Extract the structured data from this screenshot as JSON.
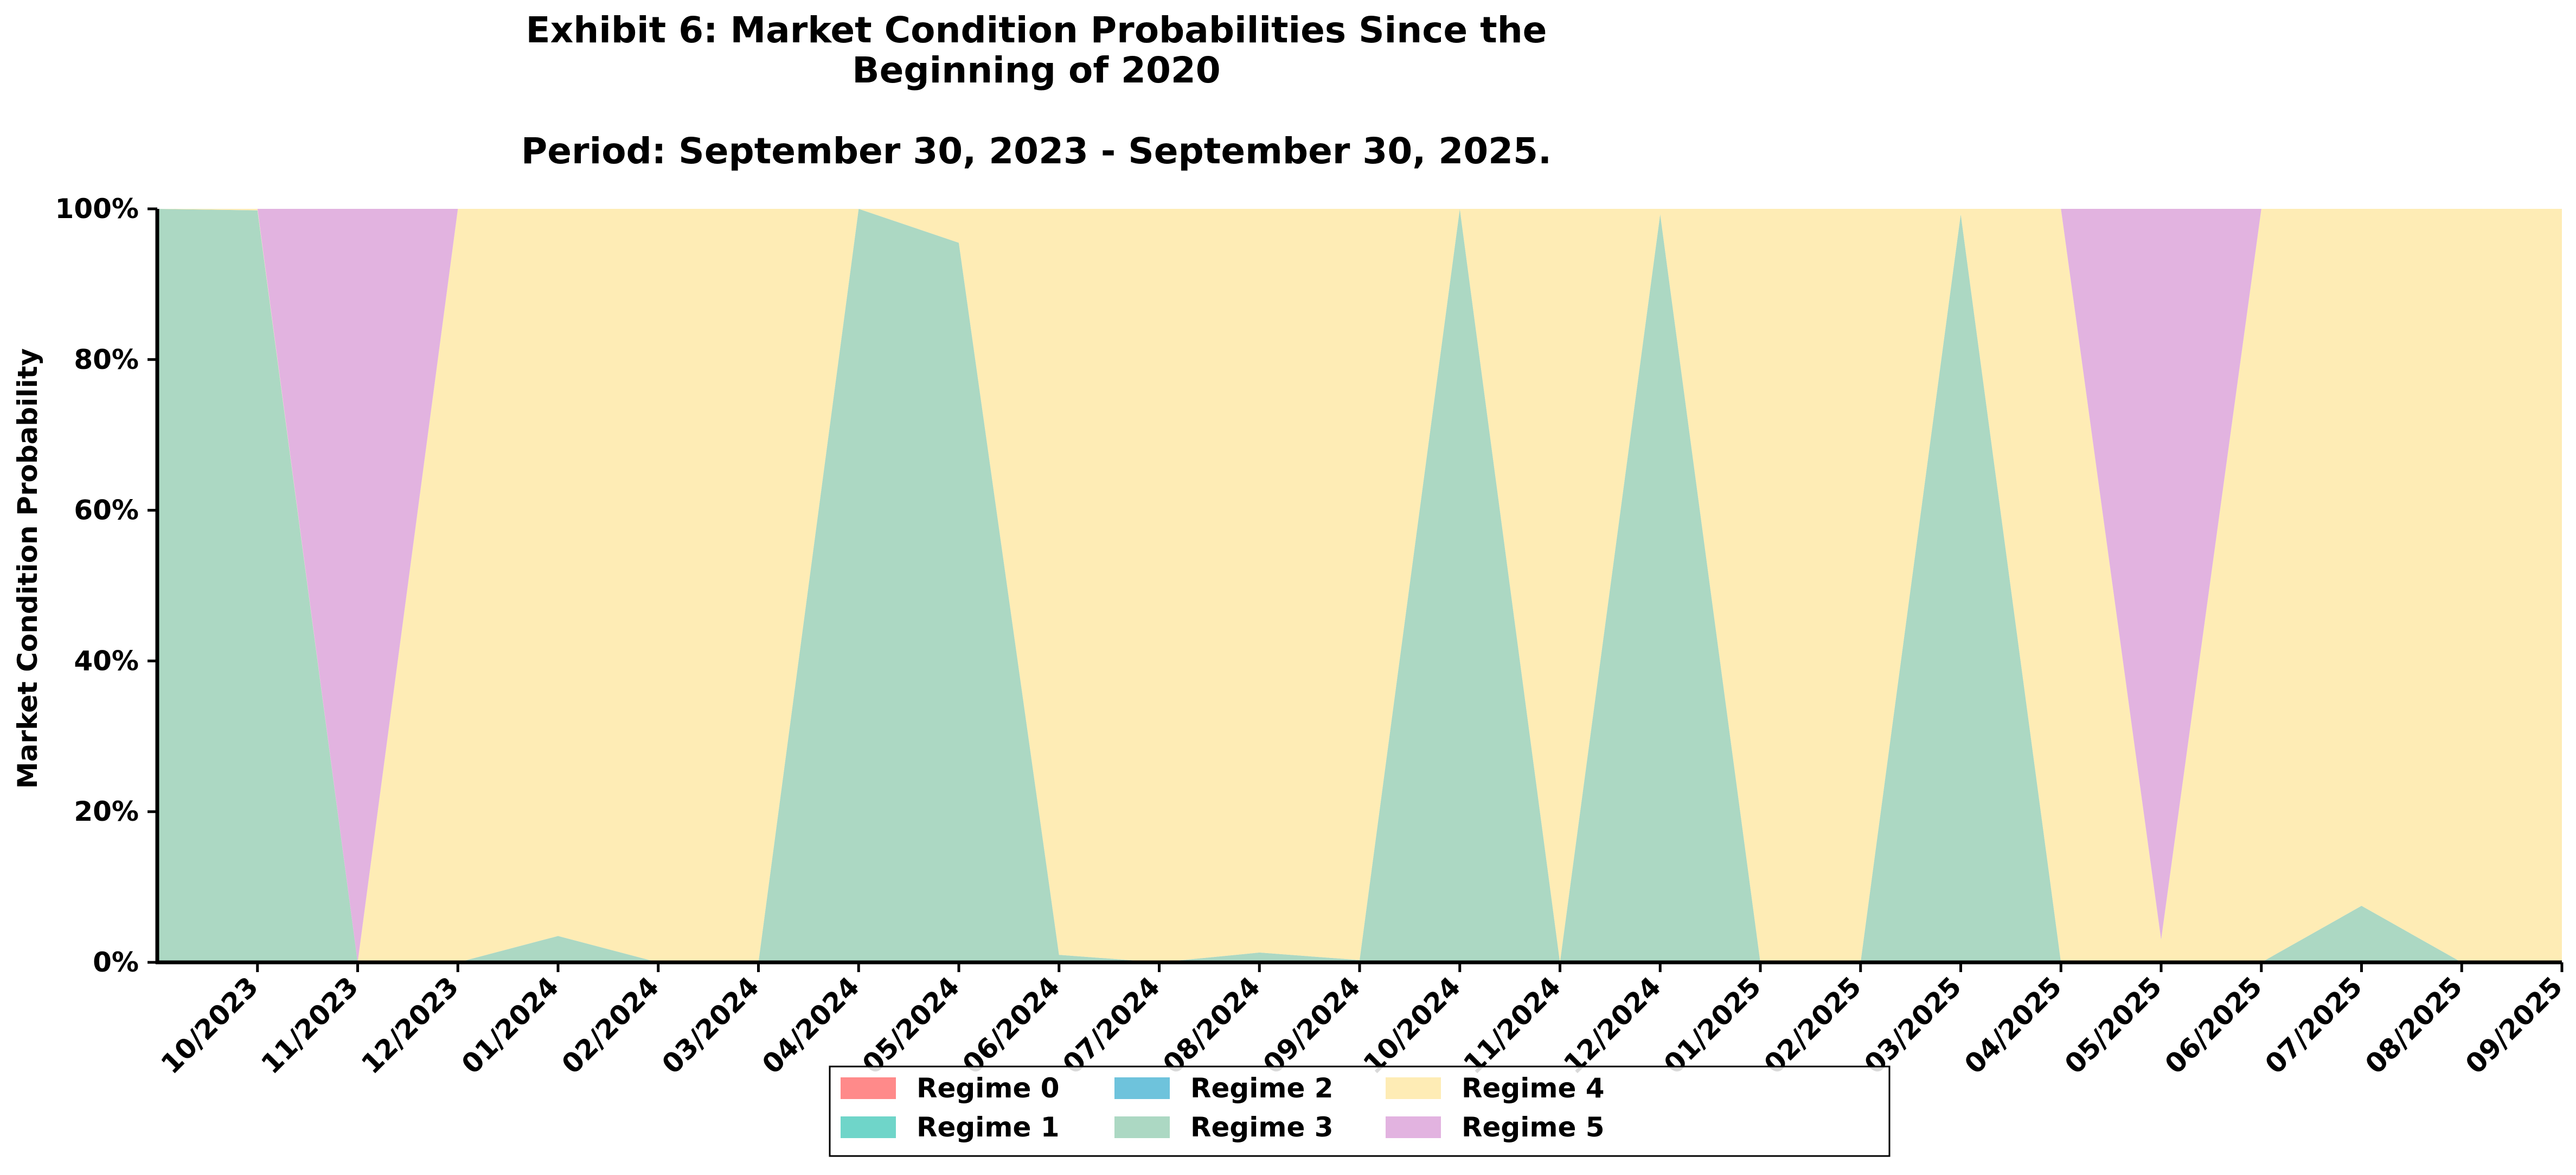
{
  "chart_data": {
    "type": "area",
    "stacked": true,
    "normalized": true,
    "title": "Exhibit 6: Market Condition Probabilities Since the\nBeginning of 2020",
    "subtitle": "Period: September 30, 2023 - September 30, 2025.",
    "xlabel": "",
    "ylabel": "Market Condition Probability",
    "ylim": [
      0,
      1
    ],
    "yticks": [
      0,
      0.2,
      0.4,
      0.6,
      0.8,
      1.0
    ],
    "ytick_labels": [
      "0%",
      "20%",
      "40%",
      "60%",
      "80%",
      "100%"
    ],
    "x": [
      "2023-09-30",
      "2023-10-31",
      "2023-11-30",
      "2023-12-31",
      "2024-01-31",
      "2024-02-29",
      "2024-03-31",
      "2024-04-30",
      "2024-05-31",
      "2024-06-30",
      "2024-07-31",
      "2024-08-31",
      "2024-09-30",
      "2024-10-31",
      "2024-11-30",
      "2024-12-31",
      "2025-01-31",
      "2025-02-28",
      "2025-03-31",
      "2025-04-30",
      "2025-05-31",
      "2025-06-30",
      "2025-07-31",
      "2025-08-31",
      "2025-09-30"
    ],
    "xtick_labels": [
      "10/2023",
      "11/2023",
      "12/2023",
      "01/2024",
      "02/2024",
      "03/2024",
      "04/2024",
      "05/2024",
      "06/2024",
      "07/2024",
      "08/2024",
      "09/2024",
      "10/2024",
      "11/2024",
      "12/2024",
      "01/2025",
      "02/2025",
      "03/2025",
      "04/2025",
      "05/2025",
      "06/2025",
      "07/2025",
      "08/2025",
      "09/2025"
    ],
    "series": [
      {
        "name": "Regime 0",
        "color": "#ff8a8a",
        "values": [
          0,
          0,
          0,
          0,
          0,
          0,
          0,
          0,
          0,
          0,
          0,
          0,
          0,
          0,
          0,
          0,
          0,
          0,
          0,
          0,
          0,
          0,
          0,
          0,
          0
        ]
      },
      {
        "name": "Regime 1",
        "color": "#6fd5c9",
        "values": [
          0,
          0,
          0,
          0,
          0,
          0,
          0,
          0,
          0,
          0,
          0,
          0,
          0,
          0,
          0,
          0,
          0,
          0,
          0,
          0,
          0,
          0,
          0,
          0,
          0
        ]
      },
      {
        "name": "Regime 2",
        "color": "#6ec3dc",
        "values": [
          0,
          0,
          0,
          0,
          0,
          0,
          0,
          0,
          0,
          0,
          0,
          0,
          0,
          0,
          0,
          0,
          0,
          0,
          0,
          0,
          0,
          0,
          0,
          0,
          0
        ]
      },
      {
        "name": "Regime 3",
        "color": "#acd8c3",
        "values": [
          1.0,
          0.998,
          0,
          0,
          0.035,
          0,
          0,
          1.0,
          0.955,
          0.01,
          0,
          0.013,
          0.003,
          1.0,
          0,
          0.993,
          0,
          0,
          0.993,
          0,
          0,
          0,
          0.075,
          0,
          0
        ]
      },
      {
        "name": "Regime 4",
        "color": "#feecb5",
        "values": [
          0,
          0.002,
          0,
          1.0,
          0.965,
          1.0,
          1.0,
          0,
          0.045,
          0.99,
          1.0,
          0.987,
          0.997,
          0,
          1.0,
          0.007,
          1.0,
          1.0,
          0.007,
          1.0,
          0.03,
          1.0,
          0.925,
          1.0,
          1.0
        ]
      },
      {
        "name": "Regime 5",
        "color": "#e2b3e0",
        "values": [
          0,
          0,
          1.0,
          0,
          0,
          0,
          0,
          0,
          0,
          0,
          0,
          0,
          0,
          0,
          0,
          0,
          0,
          0,
          0,
          0,
          0.97,
          0,
          0,
          0,
          0
        ]
      }
    ],
    "legend": {
      "placement": "bottom-center",
      "columns": 4
    },
    "grid": false
  }
}
